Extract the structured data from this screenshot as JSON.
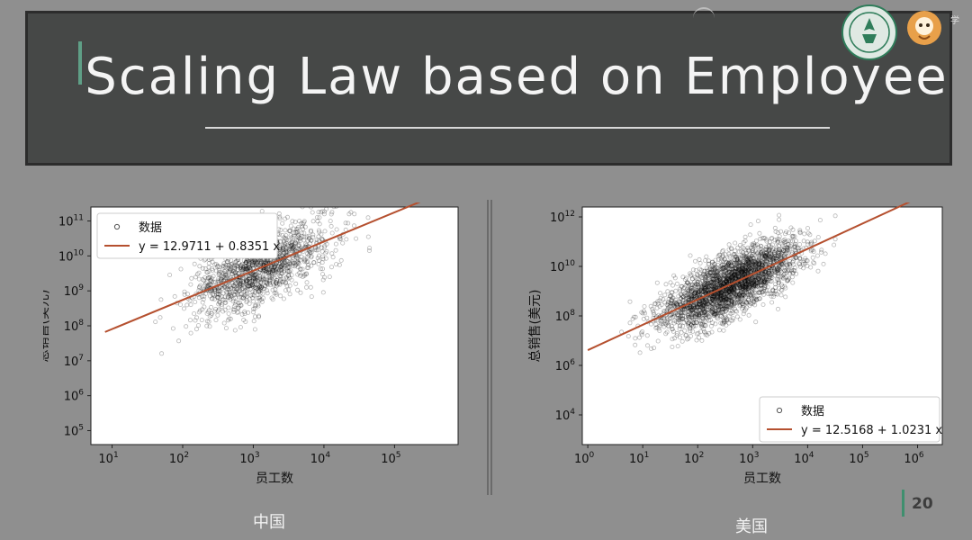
{
  "slide": {
    "title": "Scaling Law based on Employee",
    "page_number": "20",
    "captions": {
      "left": "中国",
      "right": "美国"
    },
    "top_right_fragment": "学"
  },
  "chart_data": [
    {
      "type": "scatter",
      "xlabel": "员工数",
      "ylabel": "总销售(美元)",
      "x_scale": "log10",
      "y_scale": "log10",
      "xlim_log10": [
        0.7,
        5.9
      ],
      "ylim_log10": [
        4.6,
        11.4
      ],
      "x_ticks": [
        {
          "exp": 1,
          "label": "10",
          "sup": "1"
        },
        {
          "exp": 2,
          "label": "10",
          "sup": "2"
        },
        {
          "exp": 3,
          "label": "10",
          "sup": "3"
        },
        {
          "exp": 4,
          "label": "10",
          "sup": "4"
        },
        {
          "exp": 5,
          "label": "10",
          "sup": "5"
        }
      ],
      "y_ticks": [
        {
          "exp": 5,
          "label": "10",
          "sup": "5"
        },
        {
          "exp": 6,
          "label": "10",
          "sup": "6"
        },
        {
          "exp": 7,
          "label": "10",
          "sup": "7"
        },
        {
          "exp": 8,
          "label": "10",
          "sup": "8"
        },
        {
          "exp": 9,
          "label": "10",
          "sup": "9"
        },
        {
          "exp": 10,
          "label": "10",
          "sup": "10"
        },
        {
          "exp": 11,
          "label": "10",
          "sup": "11"
        }
      ],
      "grid": false,
      "legend_position": "top-left",
      "series": [
        {
          "name": "数据",
          "kind": "scatter",
          "color": "#000000",
          "n_points": 1400,
          "x_log10_center": 3.1,
          "x_log10_spread": 0.9,
          "y_log10_noise": 0.7
        },
        {
          "name": "y = 12.9711 + 0.8351 x",
          "kind": "fit_line",
          "color": "#b5502f",
          "intercept": 12.9711,
          "slope": 0.8351,
          "x_log10_range": [
            0.9,
            5.75
          ]
        }
      ]
    },
    {
      "type": "scatter",
      "xlabel": "员工数",
      "ylabel": "总销售(美元)",
      "x_scale": "log10",
      "y_scale": "log10",
      "xlim_log10": [
        -0.1,
        6.45
      ],
      "ylim_log10": [
        2.8,
        12.4
      ],
      "x_ticks": [
        {
          "exp": 0,
          "label": "10",
          "sup": "0"
        },
        {
          "exp": 1,
          "label": "10",
          "sup": "1"
        },
        {
          "exp": 2,
          "label": "10",
          "sup": "2"
        },
        {
          "exp": 3,
          "label": "10",
          "sup": "3"
        },
        {
          "exp": 4,
          "label": "10",
          "sup": "4"
        },
        {
          "exp": 5,
          "label": "10",
          "sup": "5"
        },
        {
          "exp": 6,
          "label": "10",
          "sup": "6"
        }
      ],
      "y_ticks": [
        {
          "exp": 4,
          "label": "10",
          "sup": "4"
        },
        {
          "exp": 6,
          "label": "10",
          "sup": "6"
        },
        {
          "exp": 8,
          "label": "10",
          "sup": "8"
        },
        {
          "exp": 10,
          "label": "10",
          "sup": "10"
        },
        {
          "exp": 12,
          "label": "10",
          "sup": "12"
        }
      ],
      "grid": false,
      "legend_position": "bottom-right",
      "series": [
        {
          "name": "数据",
          "kind": "scatter",
          "color": "#000000",
          "n_points": 2600,
          "x_log10_center": 2.6,
          "x_log10_spread": 1.1,
          "y_log10_noise": 0.8
        },
        {
          "name": "y = 12.5168 + 1.0231 x",
          "kind": "fit_line",
          "color": "#b5502f",
          "intercept": 12.5168,
          "slope": 1.0231,
          "x_log10_range": [
            0.0,
            6.3
          ]
        }
      ]
    }
  ]
}
